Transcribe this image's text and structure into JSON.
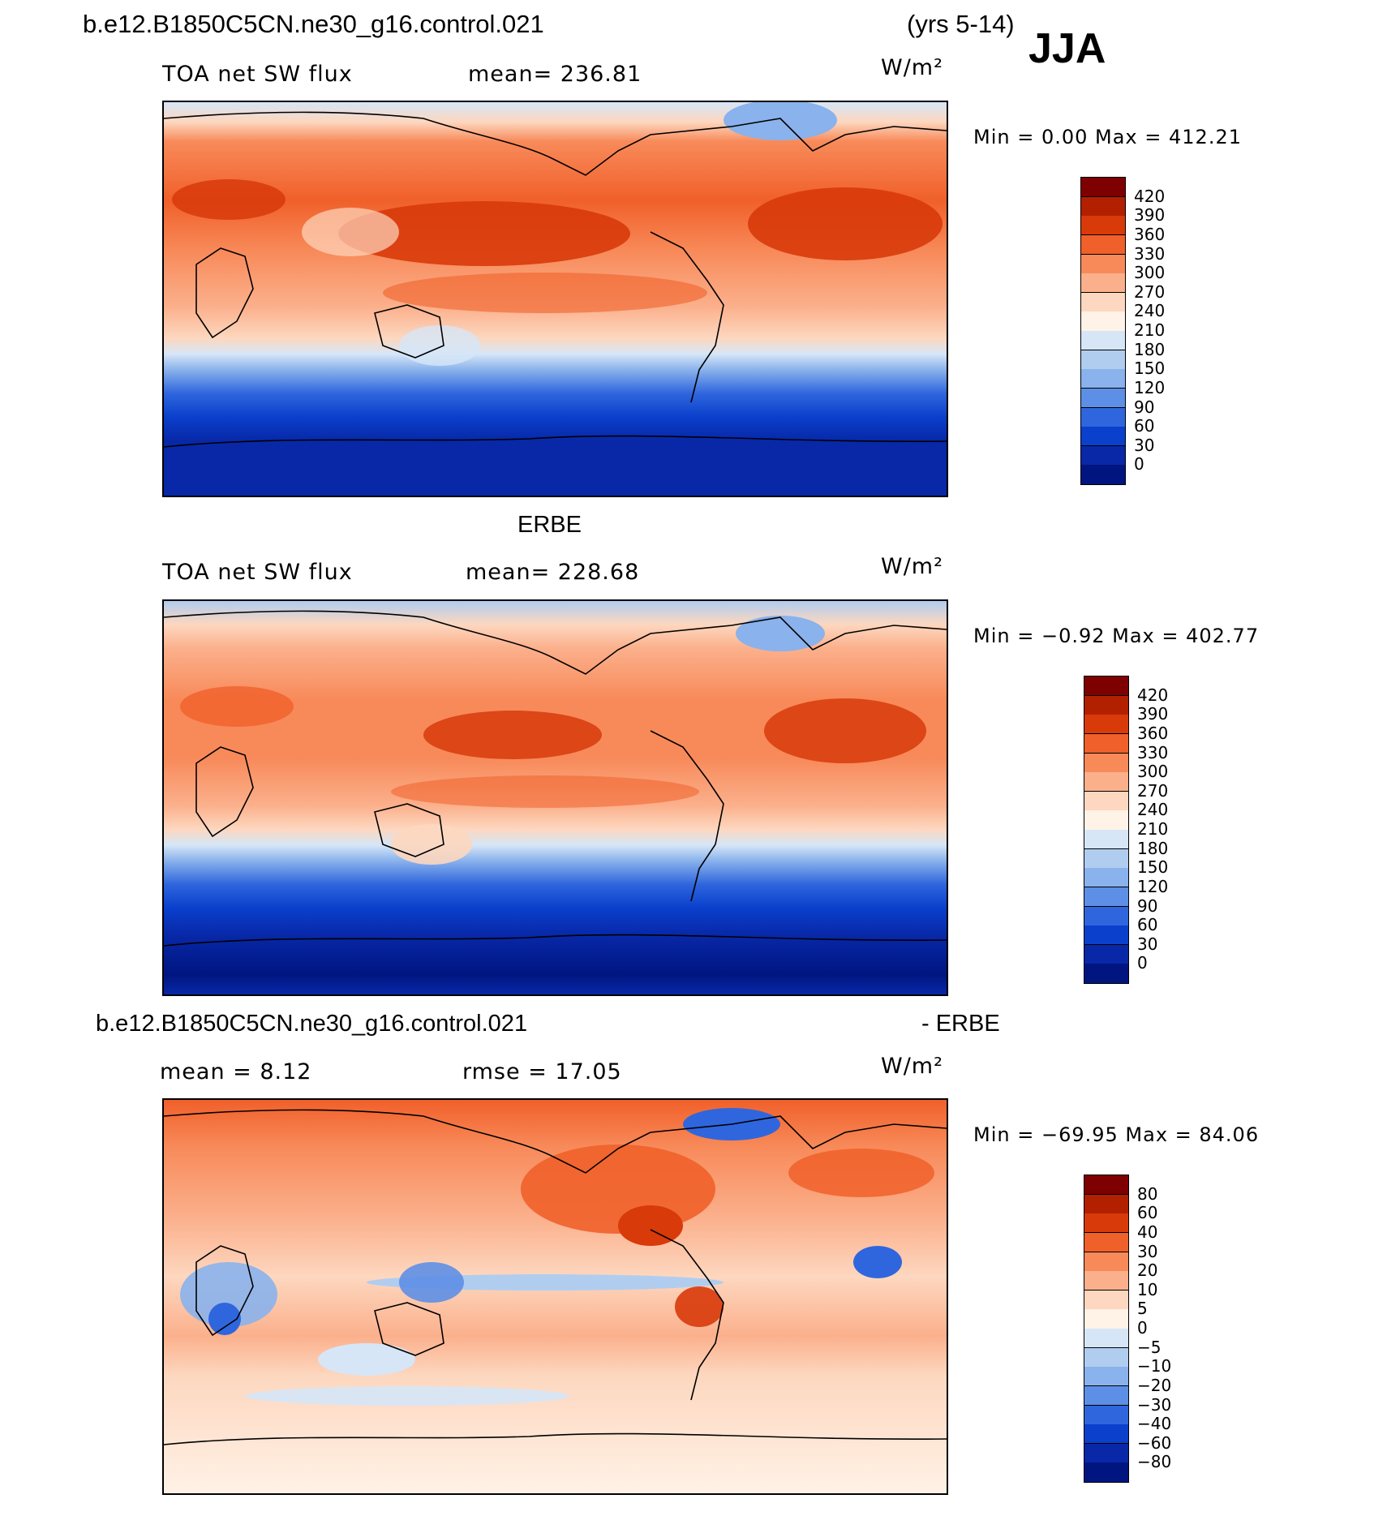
{
  "header": {
    "case_name": "b.e12.B1850C5CN.ne30_g16.control.021",
    "years": "(yrs 5-14)",
    "season": "JJA"
  },
  "panels": [
    {
      "id": "model",
      "title": "",
      "variable": "TOA net SW flux",
      "mean_text": "mean= 236.81",
      "units": "W/m²",
      "minmax": "Min =    0.00 Max = 412.21",
      "colorbar_labels": [
        "420",
        "390",
        "360",
        "330",
        "300",
        "270",
        "240",
        "210",
        "180",
        "150",
        "120",
        "90",
        "60",
        "30",
        "0"
      ]
    },
    {
      "id": "obs",
      "title": "ERBE",
      "variable": "TOA net SW flux",
      "mean_text": "mean= 228.68",
      "units": "W/m²",
      "minmax": "Min =  −0.92 Max = 402.77",
      "colorbar_labels": [
        "420",
        "390",
        "360",
        "330",
        "300",
        "270",
        "240",
        "210",
        "180",
        "150",
        "120",
        "90",
        "60",
        "30",
        "0"
      ]
    },
    {
      "id": "diff",
      "title_left": "b.e12.B1850C5CN.ne30_g16.control.021",
      "title_right": "- ERBE",
      "mean_text": "mean =    8.12",
      "rmse_text": "rmse =   17.05",
      "units": "W/m²",
      "minmax": "Min = −69.95 Max =   84.06",
      "colorbar_labels": [
        "80",
        "60",
        "40",
        "30",
        "20",
        "10",
        "5",
        "0",
        "−5",
        "−10",
        "−20",
        "−30",
        "−40",
        "−60",
        "−80"
      ]
    }
  ],
  "colors": {
    "abs_scale": [
      "#7f0000",
      "#b22000",
      "#d83a0a",
      "#f0602a",
      "#f88a5a",
      "#fbb08c",
      "#fdd7bf",
      "#fff2e6",
      "#d6e6f7",
      "#b0cdf0",
      "#8ab2ec",
      "#5e8fe6",
      "#2f66dd",
      "#0a40cc",
      "#0828a8",
      "#001580"
    ],
    "diff_scale": [
      "#7f0000",
      "#b22000",
      "#d83a0a",
      "#f0602a",
      "#f88a5a",
      "#fbb08c",
      "#fdd7bf",
      "#fff2e6",
      "#d6e6f7",
      "#b0cdf0",
      "#8ab2ec",
      "#5e8fe6",
      "#2f66dd",
      "#0a40cc",
      "#0828a8",
      "#001580"
    ]
  }
}
